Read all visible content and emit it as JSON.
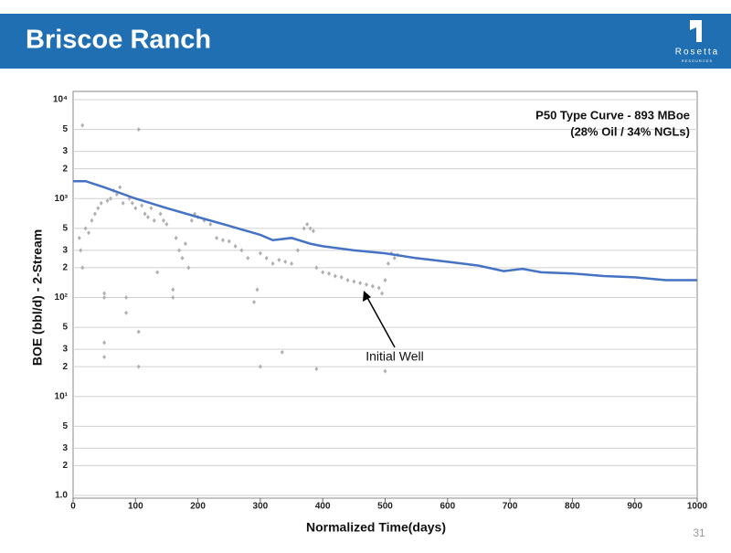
{
  "header": {
    "title": "Briscoe Ranch",
    "logo_name": "Rosetta",
    "logo_sub": "RESOURCES"
  },
  "page_number": 31,
  "chart_data": {
    "type": "line",
    "y_label": "BOE (bbl/d) - 2-Stream",
    "x_label": "Normalized Time(days)",
    "annotations": [
      "P50 Type Curve - 893 MBoe",
      "(28% Oil / 34% NGLs)",
      "Initial Well"
    ],
    "log_scale_y": true,
    "grid": true,
    "xlim": [
      0,
      1000
    ],
    "xticks": [
      0,
      100,
      200,
      300,
      400,
      500,
      600,
      700,
      800,
      900,
      1000
    ],
    "ylim": [
      1,
      10000
    ],
    "yticks": [
      {
        "value": 1,
        "label": "1.0"
      },
      2,
      3,
      5,
      {
        "value": 10,
        "label": "10¹"
      },
      {
        "value": 20,
        "label": "2"
      },
      {
        "value": 30,
        "label": "3"
      },
      {
        "value": 50,
        "label": "5"
      },
      {
        "value": 100,
        "label": "10²"
      },
      {
        "value": 200,
        "label": "2"
      },
      {
        "value": 300,
        "label": "3"
      },
      {
        "value": 500,
        "label": "5"
      },
      {
        "value": 1000,
        "label": "10³"
      },
      {
        "value": 2000,
        "label": "2"
      },
      {
        "value": 3000,
        "label": "3"
      },
      {
        "value": 5000,
        "label": "5"
      },
      {
        "value": 10000,
        "label": "10⁴"
      }
    ],
    "series": [
      {
        "style": "markers",
        "color": "#b0b0b0",
        "x": [
          15,
          105,
          10,
          12,
          15,
          20,
          25,
          30,
          35,
          40,
          45,
          50,
          50,
          50,
          50,
          55,
          60,
          65,
          70,
          75,
          80,
          85,
          85,
          90,
          95,
          100,
          105,
          105,
          110,
          115,
          120,
          125,
          130,
          135,
          140,
          145,
          150,
          160,
          160,
          165,
          170,
          175,
          180,
          185,
          190,
          195,
          200,
          210,
          220,
          230,
          240,
          250,
          260,
          270,
          280,
          290,
          295,
          300,
          300,
          310,
          320,
          330,
          335,
          340,
          350,
          360,
          370,
          375,
          380,
          385,
          390,
          390,
          400,
          410,
          420,
          430,
          440,
          450,
          460,
          470,
          480,
          490,
          495,
          500,
          500,
          505,
          510,
          515,
          520
        ],
        "values": [
          5500,
          5000,
          400,
          300,
          200,
          500,
          450,
          600,
          700,
          800,
          900,
          100,
          110,
          35,
          25,
          950,
          1000,
          1200,
          1100,
          1300,
          900,
          70,
          100,
          1000,
          900,
          800,
          45,
          20,
          850,
          700,
          650,
          800,
          600,
          180,
          700,
          600,
          550,
          120,
          100,
          400,
          300,
          250,
          350,
          200,
          600,
          700,
          650,
          600,
          550,
          400,
          380,
          370,
          330,
          300,
          250,
          90,
          120,
          20,
          280,
          250,
          220,
          240,
          28,
          230,
          220,
          300,
          500,
          550,
          500,
          470,
          19,
          200,
          180,
          175,
          165,
          160,
          150,
          145,
          140,
          135,
          130,
          125,
          110,
          18,
          150,
          220,
          280,
          250,
          270
        ]
      },
      {
        "style": "line",
        "color": "#4472c4",
        "x": [
          0,
          20,
          50,
          100,
          150,
          200,
          250,
          300,
          320,
          350,
          380,
          400,
          450,
          500,
          550,
          600,
          650,
          690,
          720,
          750,
          800,
          850,
          900,
          950,
          1000
        ],
        "values": [
          1500,
          1500,
          1300,
          1000,
          800,
          650,
          530,
          430,
          380,
          400,
          350,
          330,
          300,
          280,
          250,
          230,
          210,
          185,
          195,
          180,
          175,
          165,
          160,
          150,
          150
        ]
      }
    ]
  }
}
